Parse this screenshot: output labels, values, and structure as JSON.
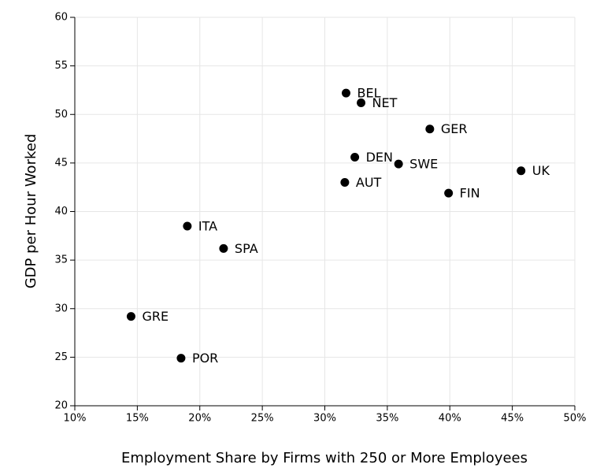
{
  "chart_data": {
    "type": "scatter",
    "x_label": "Employment Share by Firms with 250 or More Employees",
    "y_label": "GDP per Hour Worked",
    "labels": [
      "BEL",
      "NET",
      "GER",
      "DEN",
      "SWE",
      "UK",
      "AUT",
      "FIN",
      "ITA",
      "SPA",
      "GRE",
      "POR"
    ],
    "x": [
      31.7,
      32.9,
      38.4,
      32.4,
      35.9,
      45.7,
      31.6,
      39.9,
      19.0,
      21.9,
      14.5,
      18.5
    ],
    "values": [
      52.2,
      51.2,
      48.5,
      45.6,
      44.9,
      44.2,
      43.0,
      41.9,
      38.5,
      36.2,
      29.2,
      24.9
    ],
    "color": "#000000",
    "xlim": [
      10,
      50
    ],
    "xticks": [
      {
        "value": 10,
        "label": "10%"
      },
      {
        "value": 15,
        "label": "15%"
      },
      {
        "value": 20,
        "label": "20%"
      },
      {
        "value": 25,
        "label": "25%"
      },
      {
        "value": 30,
        "label": "30%"
      },
      {
        "value": 35,
        "label": "35%"
      },
      {
        "value": 40,
        "label": "40%"
      },
      {
        "value": 45,
        "label": "45%"
      },
      {
        "value": 50,
        "label": "50%"
      }
    ],
    "ylim": [
      20,
      60
    ],
    "yticks": [
      20,
      25,
      30,
      35,
      40,
      45,
      50,
      55,
      60
    ],
    "grid": true
  }
}
